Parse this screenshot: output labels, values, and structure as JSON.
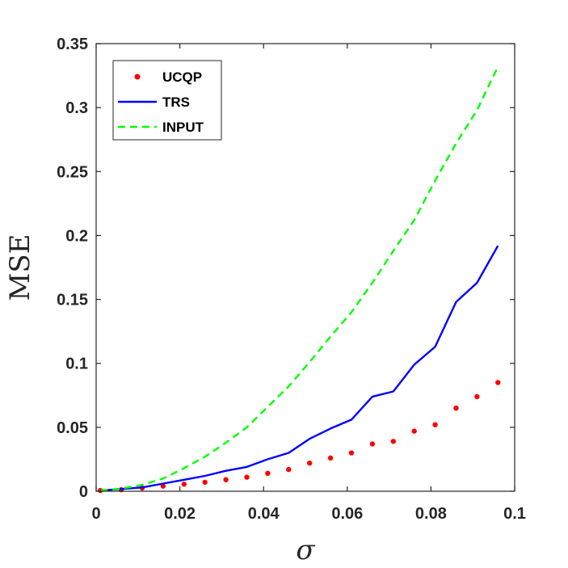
{
  "chart_data": {
    "type": "line",
    "title": "",
    "xlabel": "σ",
    "ylabel": "MSE",
    "xlim": [
      0,
      0.1
    ],
    "ylim": [
      0,
      0.35
    ],
    "xticks": [
      "0",
      "0.02",
      "0.04",
      "0.06",
      "0.08",
      "0.1"
    ],
    "yticks": [
      "0",
      "0.05",
      "0.1",
      "0.15",
      "0.2",
      "0.25",
      "0.3",
      "0.35"
    ],
    "grid": false,
    "legend_position": "top-left",
    "x": [
      0.001,
      0.006,
      0.011,
      0.016,
      0.021,
      0.026,
      0.031,
      0.036,
      0.041,
      0.046,
      0.051,
      0.056,
      0.061,
      0.066,
      0.071,
      0.076,
      0.081,
      0.086,
      0.091,
      0.096
    ],
    "series": [
      {
        "name": "UCQP",
        "style": "dotted-markers",
        "color": "#ff0000",
        "values": [
          0.0006,
          0.0012,
          0.0025,
          0.004,
          0.0055,
          0.007,
          0.009,
          0.011,
          0.014,
          0.017,
          0.022,
          0.026,
          0.03,
          0.037,
          0.039,
          0.047,
          0.052,
          0.065,
          0.074,
          0.085
        ]
      },
      {
        "name": "TRS",
        "style": "solid",
        "color": "#0000ff",
        "values": [
          0.0006,
          0.0018,
          0.003,
          0.006,
          0.009,
          0.012,
          0.016,
          0.019,
          0.025,
          0.03,
          0.041,
          0.049,
          0.056,
          0.074,
          0.078,
          0.099,
          0.113,
          0.148,
          0.163,
          0.192
        ]
      },
      {
        "name": "INPUT",
        "style": "dashed",
        "color": "#00ff00",
        "values": [
          0.0006,
          0.002,
          0.005,
          0.01,
          0.018,
          0.027,
          0.038,
          0.05,
          0.066,
          0.082,
          0.101,
          0.121,
          0.14,
          0.163,
          0.188,
          0.212,
          0.243,
          0.272,
          0.298,
          0.332
        ]
      }
    ]
  }
}
